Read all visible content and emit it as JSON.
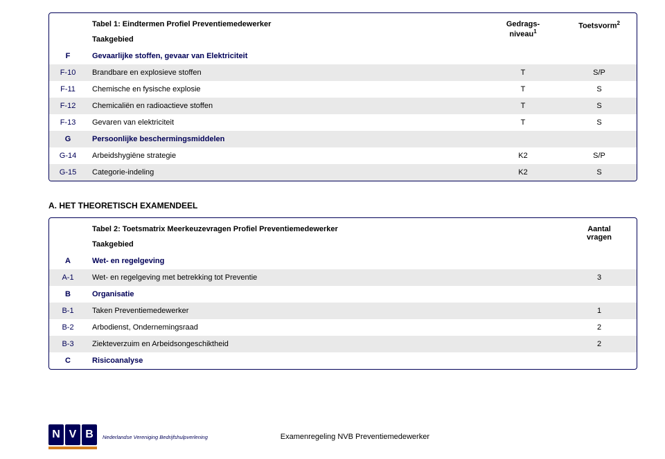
{
  "table1": {
    "title": "Tabel 1: Eindtermen Profiel Preventiemedewerker",
    "taakgebied": "Taakgebied",
    "col_level": "Gedrags-\nniveau",
    "col_form": "Toetsvorm",
    "sup1": "1",
    "sup2": "2",
    "rows": [
      {
        "type": "section",
        "code": "F",
        "desc": "Gevaarlijke stoffen, gevaar van Elektriciteit",
        "level": "",
        "form": "",
        "striped": false
      },
      {
        "type": "data",
        "code": "F-10",
        "desc": "Brandbare en explosieve stoffen",
        "level": "T",
        "form": "S/P",
        "striped": true
      },
      {
        "type": "data",
        "code": "F-11",
        "desc": "Chemische en fysische explosie",
        "level": "T",
        "form": "S",
        "striped": false
      },
      {
        "type": "data",
        "code": "F-12",
        "desc": "Chemicaliën en radioactieve stoffen",
        "level": "T",
        "form": "S",
        "striped": true
      },
      {
        "type": "data",
        "code": "F-13",
        "desc": "Gevaren van elektriciteit",
        "level": "T",
        "form": "S",
        "striped": false
      },
      {
        "type": "section",
        "code": "G",
        "desc": "Persoonlijke beschermingsmiddelen",
        "level": "",
        "form": "",
        "striped": true
      },
      {
        "type": "data",
        "code": "G-14",
        "desc": "Arbeidshygiëne strategie",
        "level": "K2",
        "form": "S/P",
        "striped": false
      },
      {
        "type": "data",
        "code": "G-15",
        "desc": "Categorie-indeling",
        "level": "K2",
        "form": "S",
        "striped": true
      }
    ]
  },
  "section_a_heading": "A.   HET THEORETISCH EXAMENDEEL",
  "table2": {
    "title": "Tabel 2: Toetsmatrix Meerkeuzevragen Profiel Preventiemedewerker",
    "taakgebied": "Taakgebied",
    "col_count": "Aantal\nvragen",
    "rows": [
      {
        "type": "section",
        "code": "A",
        "desc": "Wet- en regelgeving",
        "count": "",
        "striped": false
      },
      {
        "type": "data",
        "code": "A-1",
        "desc": "Wet- en regelgeving met betrekking tot Preventie",
        "count": "3",
        "striped": true
      },
      {
        "type": "section",
        "code": "B",
        "desc": "Organisatie",
        "count": "",
        "striped": false
      },
      {
        "type": "data",
        "code": "B-1",
        "desc": "Taken Preventiemedewerker",
        "count": "1",
        "striped": true
      },
      {
        "type": "data",
        "code": "B-2",
        "desc": "Arbodienst, Ondernemingsraad",
        "count": "2",
        "striped": false
      },
      {
        "type": "data",
        "code": "B-3",
        "desc": "Ziekteverzuim en Arbeidsongeschiktheid",
        "count": "2",
        "striped": true
      },
      {
        "type": "section",
        "code": "C",
        "desc": "Risicoanalyse",
        "count": "",
        "striped": false
      }
    ]
  },
  "logo": {
    "letters": [
      "N",
      "V",
      "B"
    ],
    "subtitle": "Nederlandse Vereniging Bedrijfshulpverlening"
  },
  "footer_text": "Examenregeling NVB Preventiemedewerker"
}
